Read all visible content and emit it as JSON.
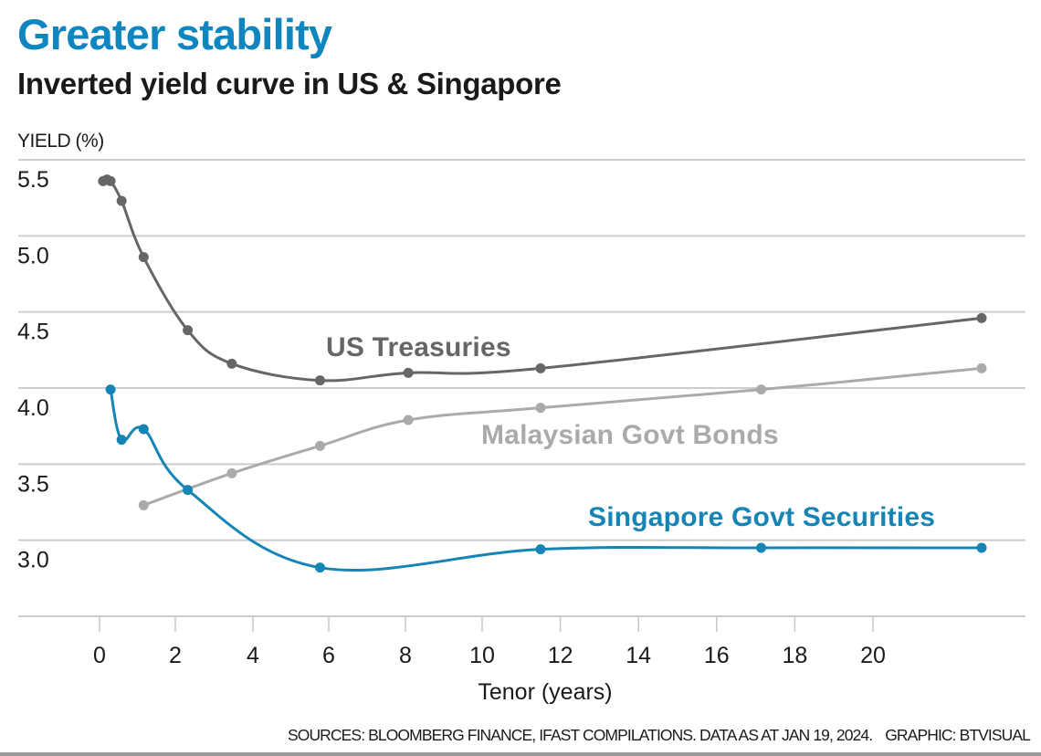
{
  "header": {
    "title": "Greater stability",
    "subtitle": "Inverted yield curve in US & Singapore"
  },
  "footer": {
    "sources": "SOURCES: BLOOMBERG FINANCE, IFAST COMPILATIONS. DATA AS AT JAN 19, 2024.",
    "credit": "GRAPHIC: BTVISUAL"
  },
  "colors": {
    "title": "#0f86c0",
    "us_treasuries": "#666666",
    "malaysian_govt_bonds": "#aaaaaa",
    "singapore_govt_securities": "#1685b5",
    "grid": "#cccccc"
  },
  "chart_data": {
    "type": "line",
    "title": "Greater stability",
    "subtitle": "Inverted yield curve in US & Singapore",
    "xlabel": "Tenor (years)",
    "ylabel": "YIELD (%)",
    "xlim": [
      0,
      20
    ],
    "ylim": [
      2.5,
      5.5
    ],
    "xticks": [
      0,
      2,
      4,
      6,
      8,
      10,
      12,
      14,
      16,
      18,
      20
    ],
    "xtick_labels": [
      "0",
      "2",
      "4",
      "6",
      "8",
      "10",
      "12",
      "14",
      "16",
      "18",
      "20"
    ],
    "yticks": [
      3.0,
      3.5,
      4.0,
      4.5,
      5.0,
      5.5
    ],
    "ytick_labels": [
      "3.0",
      "3.5",
      "4.0",
      "4.5",
      "5.0",
      "5.5"
    ],
    "grid": true,
    "legend": "inline labels",
    "series": [
      {
        "name": "US Treasuries",
        "color": "#666666",
        "x": [
          0.08,
          0.17,
          0.25,
          0.5,
          1,
          2,
          3,
          5,
          7,
          10,
          20
        ],
        "y": [
          5.36,
          5.37,
          5.36,
          5.23,
          4.86,
          4.38,
          4.16,
          4.05,
          4.1,
          4.13,
          4.46
        ]
      },
      {
        "name": "Malaysian Govt Bonds",
        "color": "#aaaaaa",
        "x": [
          1,
          3,
          5,
          7,
          10,
          15,
          20
        ],
        "y": [
          3.23,
          3.44,
          3.62,
          3.79,
          3.87,
          3.99,
          4.13
        ]
      },
      {
        "name": "Singapore Govt Securities",
        "color": "#1685b5",
        "x": [
          0.25,
          0.5,
          1,
          2,
          5,
          10,
          15,
          20
        ],
        "y": [
          3.99,
          3.66,
          3.73,
          3.33,
          2.82,
          2.94,
          2.95,
          2.95
        ]
      }
    ]
  }
}
